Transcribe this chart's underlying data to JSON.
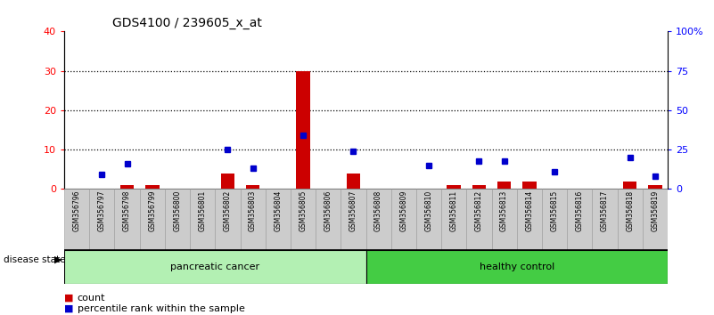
{
  "title": "GDS4100 / 239605_x_at",
  "samples": [
    "GSM356796",
    "GSM356797",
    "GSM356798",
    "GSM356799",
    "GSM356800",
    "GSM356801",
    "GSM356802",
    "GSM356803",
    "GSM356804",
    "GSM356805",
    "GSM356806",
    "GSM356807",
    "GSM356808",
    "GSM356809",
    "GSM356810",
    "GSM356811",
    "GSM356812",
    "GSM356813",
    "GSM356814",
    "GSM356815",
    "GSM356816",
    "GSM356817",
    "GSM356818",
    "GSM356819"
  ],
  "count": [
    0,
    0,
    1,
    1,
    0,
    0,
    4,
    1,
    0,
    30,
    0,
    4,
    0,
    0,
    0,
    1,
    1,
    2,
    2,
    0,
    0,
    0,
    2,
    1
  ],
  "percentile": [
    null,
    9,
    16,
    null,
    null,
    null,
    25,
    13,
    null,
    34,
    null,
    24,
    null,
    null,
    15,
    null,
    18,
    18,
    null,
    11,
    null,
    null,
    20,
    8
  ],
  "pancreatic_cancer_indices": [
    0,
    1,
    2,
    3,
    4,
    5,
    6,
    7,
    8,
    9,
    10,
    11
  ],
  "healthy_control_indices": [
    12,
    13,
    14,
    15,
    16,
    17,
    18,
    19,
    20,
    21,
    22,
    23
  ],
  "ylim_left": [
    0,
    40
  ],
  "ylim_right": [
    0,
    100
  ],
  "yticks_left": [
    0,
    10,
    20,
    30,
    40
  ],
  "yticks_right": [
    0,
    25,
    50,
    75,
    100
  ],
  "ytick_labels_right": [
    "0",
    "25",
    "50",
    "75",
    "100%"
  ],
  "bar_color": "#cc0000",
  "dot_color": "#0000cc",
  "pancreatic_light_color": "#b3f0b3",
  "healthy_color": "#44cc44",
  "sample_bg_color": "#cccccc"
}
